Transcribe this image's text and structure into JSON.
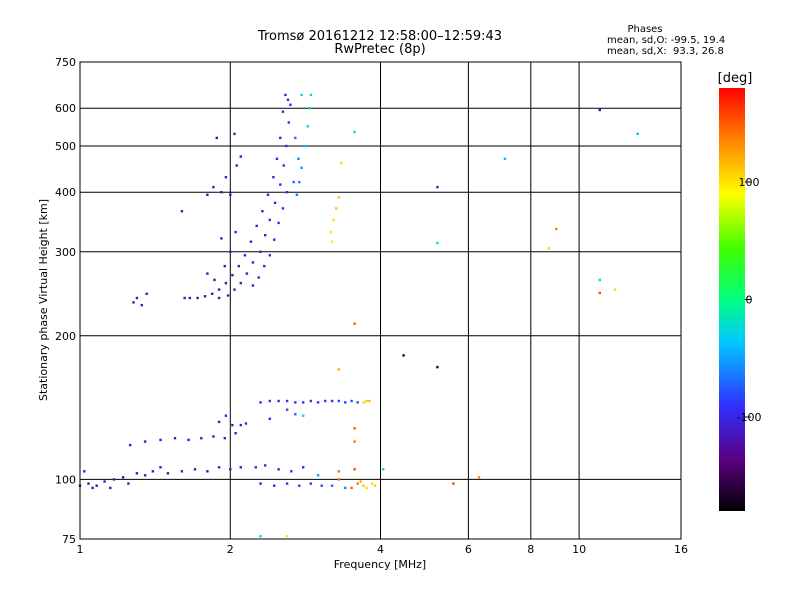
{
  "chart_data": {
    "type": "scatter",
    "title": "Tromsø 20161212 12:58:00–12:59:43",
    "subtitle": "RwPretec (8p)",
    "stats": {
      "heading": "Phases",
      "line1": "mean, sd,O: -99.5, 19.4",
      "line2": "mean, sd,X:  93.3, 26.8"
    },
    "xlabel": "Frequency [MHz]",
    "ylabel": "Stationary phase Virtual Height [km]",
    "x_scale": "log",
    "y_scale": "log",
    "xlim": [
      1,
      16
    ],
    "ylim": [
      75,
      750
    ],
    "x_ticks": [
      1,
      2,
      4,
      6,
      8,
      10,
      16
    ],
    "x_tick_labels": [
      "1",
      "2",
      "4",
      "6",
      "8",
      "10",
      "16"
    ],
    "y_ticks": [
      75,
      100,
      200,
      300,
      400,
      500,
      600,
      750
    ],
    "y_tick_labels": [
      "75",
      "100",
      "200",
      "300",
      "400",
      "500",
      "600",
      "750"
    ],
    "grid": true,
    "colorbar": {
      "label": "[deg]",
      "range": [
        -180,
        180
      ],
      "ticks": [
        100,
        0,
        -100
      ],
      "tick_labels": [
        "100",
        "0",
        "-100"
      ]
    },
    "points": [
      [
        2.58,
        640,
        -105
      ],
      [
        2.61,
        625,
        -100
      ],
      [
        2.64,
        610,
        -95
      ],
      [
        2.78,
        640,
        -30
      ],
      [
        2.55,
        590,
        -100
      ],
      [
        2.62,
        560,
        -98
      ],
      [
        2.52,
        520,
        -105
      ],
      [
        2.59,
        500,
        -100
      ],
      [
        2.48,
        470,
        -102
      ],
      [
        2.56,
        455,
        -95
      ],
      [
        2.7,
        520,
        -70
      ],
      [
        2.74,
        470,
        -60
      ],
      [
        2.44,
        430,
        -103
      ],
      [
        2.52,
        415,
        -100
      ],
      [
        2.6,
        400,
        -90
      ],
      [
        2.68,
        420,
        -70
      ],
      [
        2.38,
        395,
        -105
      ],
      [
        2.46,
        380,
        -100
      ],
      [
        2.55,
        370,
        -92
      ],
      [
        2.32,
        365,
        -106
      ],
      [
        2.4,
        350,
        -102
      ],
      [
        2.5,
        345,
        -95
      ],
      [
        2.26,
        340,
        -108
      ],
      [
        2.35,
        325,
        -104
      ],
      [
        2.45,
        318,
        -98
      ],
      [
        2.2,
        315,
        -110
      ],
      [
        2.3,
        300,
        -105
      ],
      [
        2.4,
        295,
        -100
      ],
      [
        2.14,
        295,
        -112
      ],
      [
        2.22,
        285,
        -108
      ],
      [
        2.34,
        280,
        -102
      ],
      [
        2.08,
        280,
        -115
      ],
      [
        2.16,
        270,
        -110
      ],
      [
        2.28,
        265,
        -105
      ],
      [
        2.02,
        268,
        -118
      ],
      [
        2.1,
        258,
        -112
      ],
      [
        2.22,
        255,
        -108
      ],
      [
        1.96,
        258,
        -120
      ],
      [
        2.04,
        250,
        -115
      ],
      [
        1.9,
        250,
        -120
      ],
      [
        1.98,
        243,
        -118
      ],
      [
        1.84,
        245,
        -122
      ],
      [
        1.9,
        240,
        -120
      ],
      [
        1.78,
        242,
        -125
      ],
      [
        1.72,
        240,
        -125
      ],
      [
        1.66,
        240,
        -122
      ],
      [
        1.62,
        240,
        -118
      ],
      [
        1.86,
        262,
        -120
      ],
      [
        1.95,
        280,
        -115
      ],
      [
        1.8,
        270,
        -120
      ],
      [
        2.0,
        300,
        -112
      ],
      [
        1.92,
        320,
        -118
      ],
      [
        2.05,
        330,
        -110
      ],
      [
        1.85,
        410,
        -120
      ],
      [
        1.92,
        400,
        -118
      ],
      [
        1.96,
        430,
        -115
      ],
      [
        2.0,
        395,
        -112
      ],
      [
        1.8,
        395,
        -125
      ],
      [
        1.88,
        520,
        -125
      ],
      [
        2.04,
        530,
        -110
      ],
      [
        2.1,
        475,
        -108
      ],
      [
        2.06,
        455,
        -112
      ],
      [
        1.6,
        365,
        -120
      ],
      [
        1.3,
        240,
        -118
      ],
      [
        1.33,
        232,
        -120
      ],
      [
        1.36,
        245,
        -115
      ],
      [
        1.28,
        235,
        -122
      ],
      [
        2.9,
        640,
        -20
      ],
      [
        2.88,
        600,
        -25
      ],
      [
        2.86,
        550,
        -30
      ],
      [
        2.82,
        500,
        -40
      ],
      [
        2.78,
        450,
        -55
      ],
      [
        2.75,
        420,
        -60
      ],
      [
        2.72,
        395,
        -65
      ],
      [
        3.18,
        330,
        100
      ],
      [
        3.22,
        350,
        105
      ],
      [
        3.26,
        370,
        110
      ],
      [
        3.2,
        315,
        95
      ],
      [
        3.3,
        390,
        112
      ],
      [
        3.34,
        460,
        105
      ],
      [
        3.55,
        535,
        -25
      ],
      [
        3.55,
        212,
        150
      ],
      [
        3.3,
        170,
        120
      ],
      [
        4.45,
        182,
        -160
      ],
      [
        5.2,
        410,
        -110
      ],
      [
        5.2,
        313,
        -20
      ],
      [
        5.2,
        172,
        -160
      ],
      [
        7.1,
        470,
        -40
      ],
      [
        8.7,
        305,
        110
      ],
      [
        9.0,
        335,
        135
      ],
      [
        11.0,
        595,
        -130
      ],
      [
        11.0,
        262,
        -30
      ],
      [
        11.0,
        246,
        155
      ],
      [
        11.8,
        250,
        105
      ],
      [
        13.1,
        530,
        -40
      ],
      [
        1.0,
        97,
        -118
      ],
      [
        1.04,
        98,
        -122
      ],
      [
        1.08,
        97,
        -120
      ],
      [
        1.12,
        99,
        -118
      ],
      [
        1.17,
        100,
        -115
      ],
      [
        1.22,
        101,
        -118
      ],
      [
        1.3,
        103,
        -120
      ],
      [
        1.4,
        104,
        -115
      ],
      [
        1.5,
        103,
        -117
      ],
      [
        1.6,
        104,
        -112
      ],
      [
        1.7,
        105,
        -118
      ],
      [
        1.8,
        104,
        -115
      ],
      [
        1.9,
        106,
        -110
      ],
      [
        2.0,
        105,
        -115
      ],
      [
        2.1,
        106,
        -108
      ],
      [
        1.02,
        104,
        -110
      ],
      [
        1.06,
        96,
        -125
      ],
      [
        1.15,
        96,
        -120
      ],
      [
        1.25,
        98,
        -118
      ],
      [
        1.35,
        102,
        -115
      ],
      [
        1.45,
        106,
        -117
      ],
      [
        1.26,
        118,
        -112
      ],
      [
        1.35,
        120,
        -115
      ],
      [
        1.45,
        121,
        -112
      ],
      [
        1.55,
        122,
        -110
      ],
      [
        1.65,
        121,
        -115
      ],
      [
        1.75,
        122,
        -110
      ],
      [
        1.85,
        123,
        -108
      ],
      [
        1.95,
        122,
        -112
      ],
      [
        2.05,
        125,
        -105
      ],
      [
        2.1,
        130,
        -108
      ],
      [
        2.15,
        131,
        -100
      ],
      [
        1.9,
        132,
        -115
      ],
      [
        1.96,
        136,
        -105
      ],
      [
        2.02,
        130,
        -110
      ],
      [
        2.3,
        145,
        -100
      ],
      [
        2.4,
        146,
        -95
      ],
      [
        2.5,
        146,
        -98
      ],
      [
        2.6,
        146,
        -92
      ],
      [
        2.7,
        145,
        -95
      ],
      [
        2.8,
        145,
        -90
      ],
      [
        2.9,
        146,
        -88
      ],
      [
        3.0,
        145,
        -92
      ],
      [
        3.1,
        146,
        -85
      ],
      [
        3.2,
        146,
        -90
      ],
      [
        3.3,
        146,
        -82
      ],
      [
        3.4,
        145,
        -88
      ],
      [
        3.5,
        146,
        -80
      ],
      [
        3.6,
        145,
        -85
      ],
      [
        3.75,
        146,
        110
      ],
      [
        3.8,
        146,
        115
      ],
      [
        3.7,
        145,
        105
      ],
      [
        2.6,
        140,
        -80
      ],
      [
        2.7,
        137,
        -70
      ],
      [
        2.8,
        136,
        -20
      ],
      [
        2.4,
        134,
        -95
      ],
      [
        2.25,
        106,
        -100
      ],
      [
        2.35,
        107,
        -95
      ],
      [
        2.5,
        105,
        -98
      ],
      [
        2.65,
        104,
        -90
      ],
      [
        2.8,
        106,
        -92
      ],
      [
        2.3,
        98,
        -110
      ],
      [
        2.45,
        97,
        -100
      ],
      [
        2.6,
        98,
        -95
      ],
      [
        2.75,
        97,
        -90
      ],
      [
        2.9,
        98,
        -88
      ],
      [
        3.05,
        97,
        -80
      ],
      [
        3.2,
        97,
        -70
      ],
      [
        3.4,
        96,
        -60
      ],
      [
        3.5,
        96,
        150
      ],
      [
        3.6,
        98,
        140
      ],
      [
        3.65,
        99,
        120
      ],
      [
        3.7,
        97,
        110
      ],
      [
        3.75,
        96,
        105
      ],
      [
        3.85,
        98,
        100
      ],
      [
        3.9,
        97,
        110
      ],
      [
        3.55,
        128,
        150
      ],
      [
        3.55,
        120,
        140
      ],
      [
        3.55,
        105,
        155
      ],
      [
        3.3,
        104,
        140
      ],
      [
        3.3,
        100,
        145
      ],
      [
        3.0,
        102,
        -50
      ],
      [
        4.05,
        105,
        -20
      ],
      [
        6.3,
        101,
        135
      ],
      [
        5.6,
        98,
        155
      ],
      [
        2.3,
        76,
        -35
      ],
      [
        2.6,
        76,
        100
      ]
    ]
  }
}
